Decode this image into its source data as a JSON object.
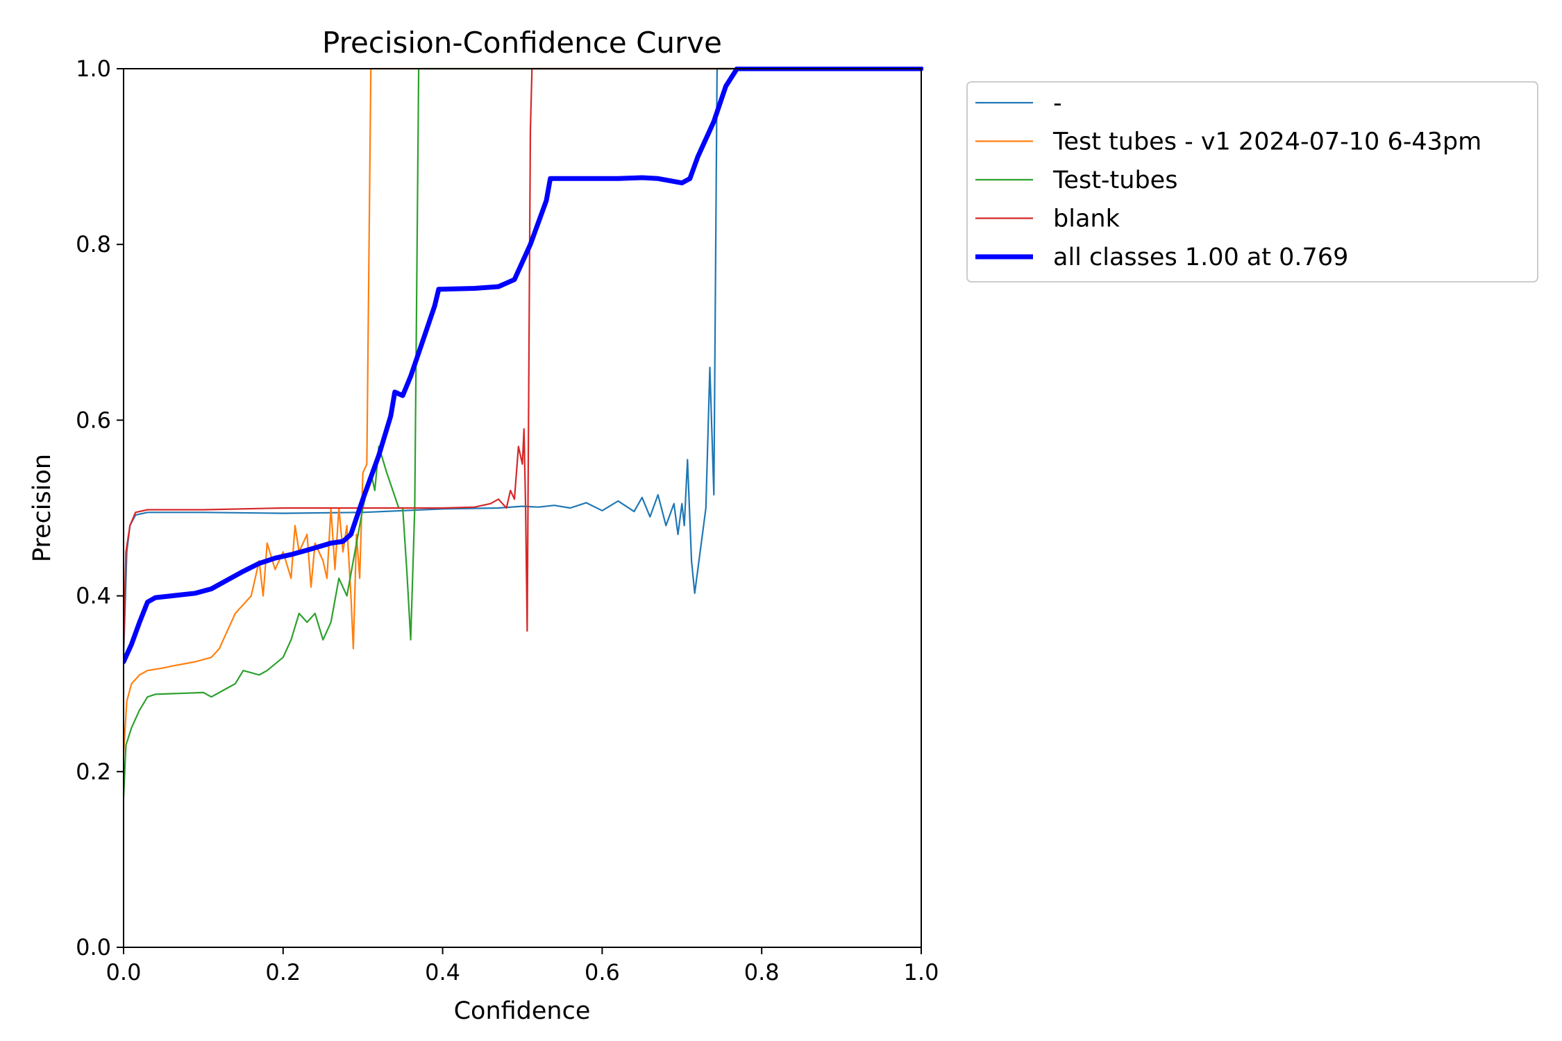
{
  "chart_data": {
    "type": "line",
    "title": "Precision-Confidence Curve",
    "xlabel": "Confidence",
    "ylabel": "Precision",
    "xlim": [
      0,
      1
    ],
    "ylim": [
      0,
      1
    ],
    "x_ticks": [
      "0.0",
      "0.2",
      "0.4",
      "0.6",
      "0.8",
      "1.0"
    ],
    "y_ticks": [
      "0.0",
      "0.2",
      "0.4",
      "0.6",
      "0.8",
      "1.0"
    ],
    "grid": false,
    "legend_position": "outside-top-right",
    "series": [
      {
        "name": "-",
        "color": "#1f77b4",
        "width": "thin",
        "points": [
          [
            0.0,
            0.33
          ],
          [
            0.004,
            0.45
          ],
          [
            0.008,
            0.48
          ],
          [
            0.015,
            0.492
          ],
          [
            0.03,
            0.495
          ],
          [
            0.1,
            0.495
          ],
          [
            0.2,
            0.494
          ],
          [
            0.3,
            0.495
          ],
          [
            0.4,
            0.499
          ],
          [
            0.47,
            0.5
          ],
          [
            0.5,
            0.502
          ],
          [
            0.52,
            0.501
          ],
          [
            0.54,
            0.503
          ],
          [
            0.56,
            0.5
          ],
          [
            0.58,
            0.506
          ],
          [
            0.6,
            0.497
          ],
          [
            0.62,
            0.508
          ],
          [
            0.64,
            0.496
          ],
          [
            0.65,
            0.512
          ],
          [
            0.66,
            0.49
          ],
          [
            0.67,
            0.515
          ],
          [
            0.68,
            0.48
          ],
          [
            0.69,
            0.505
          ],
          [
            0.695,
            0.47
          ],
          [
            0.7,
            0.505
          ],
          [
            0.703,
            0.48
          ],
          [
            0.707,
            0.555
          ],
          [
            0.712,
            0.44
          ],
          [
            0.716,
            0.403
          ],
          [
            0.73,
            0.5
          ],
          [
            0.735,
            0.66
          ],
          [
            0.74,
            0.515
          ],
          [
            0.744,
            1.0
          ],
          [
            1.0,
            1.0
          ]
        ]
      },
      {
        "name": "Test tubes - v1 2024-07-10 6-43pm",
        "color": "#ff7f0e",
        "width": "thin",
        "points": [
          [
            0.0,
            0.22
          ],
          [
            0.004,
            0.28
          ],
          [
            0.01,
            0.3
          ],
          [
            0.02,
            0.31
          ],
          [
            0.03,
            0.315
          ],
          [
            0.05,
            0.318
          ],
          [
            0.06,
            0.32
          ],
          [
            0.09,
            0.325
          ],
          [
            0.11,
            0.33
          ],
          [
            0.12,
            0.34
          ],
          [
            0.13,
            0.36
          ],
          [
            0.14,
            0.38
          ],
          [
            0.15,
            0.39
          ],
          [
            0.16,
            0.4
          ],
          [
            0.165,
            0.42
          ],
          [
            0.17,
            0.44
          ],
          [
            0.175,
            0.4
          ],
          [
            0.18,
            0.46
          ],
          [
            0.19,
            0.43
          ],
          [
            0.2,
            0.45
          ],
          [
            0.21,
            0.42
          ],
          [
            0.215,
            0.48
          ],
          [
            0.22,
            0.45
          ],
          [
            0.23,
            0.47
          ],
          [
            0.235,
            0.41
          ],
          [
            0.24,
            0.46
          ],
          [
            0.25,
            0.44
          ],
          [
            0.255,
            0.42
          ],
          [
            0.26,
            0.5
          ],
          [
            0.265,
            0.43
          ],
          [
            0.27,
            0.5
          ],
          [
            0.275,
            0.45
          ],
          [
            0.28,
            0.48
          ],
          [
            0.285,
            0.4
          ],
          [
            0.288,
            0.34
          ],
          [
            0.292,
            0.47
          ],
          [
            0.296,
            0.42
          ],
          [
            0.3,
            0.54
          ],
          [
            0.305,
            0.55
          ],
          [
            0.31,
            1.0
          ],
          [
            1.0,
            1.0
          ]
        ]
      },
      {
        "name": "Test-tubes",
        "color": "#2ca02c",
        "width": "thin",
        "points": [
          [
            0.0,
            0.17
          ],
          [
            0.003,
            0.23
          ],
          [
            0.01,
            0.25
          ],
          [
            0.02,
            0.27
          ],
          [
            0.03,
            0.285
          ],
          [
            0.04,
            0.288
          ],
          [
            0.1,
            0.29
          ],
          [
            0.11,
            0.285
          ],
          [
            0.12,
            0.29
          ],
          [
            0.13,
            0.295
          ],
          [
            0.14,
            0.3
          ],
          [
            0.15,
            0.315
          ],
          [
            0.17,
            0.31
          ],
          [
            0.18,
            0.315
          ],
          [
            0.2,
            0.33
          ],
          [
            0.21,
            0.35
          ],
          [
            0.22,
            0.38
          ],
          [
            0.23,
            0.37
          ],
          [
            0.24,
            0.38
          ],
          [
            0.25,
            0.35
          ],
          [
            0.26,
            0.37
          ],
          [
            0.27,
            0.42
          ],
          [
            0.28,
            0.4
          ],
          [
            0.29,
            0.45
          ],
          [
            0.3,
            0.5
          ],
          [
            0.31,
            0.54
          ],
          [
            0.315,
            0.52
          ],
          [
            0.32,
            0.57
          ],
          [
            0.33,
            0.54
          ],
          [
            0.345,
            0.5
          ],
          [
            0.35,
            0.5
          ],
          [
            0.355,
            0.43
          ],
          [
            0.36,
            0.35
          ],
          [
            0.365,
            0.5
          ],
          [
            0.37,
            1.0
          ],
          [
            1.0,
            1.0
          ]
        ]
      },
      {
        "name": "blank",
        "color": "#d62728",
        "width": "thin",
        "points": [
          [
            0.0,
            0.34
          ],
          [
            0.003,
            0.45
          ],
          [
            0.008,
            0.48
          ],
          [
            0.015,
            0.495
          ],
          [
            0.03,
            0.498
          ],
          [
            0.1,
            0.498
          ],
          [
            0.2,
            0.5
          ],
          [
            0.3,
            0.5
          ],
          [
            0.35,
            0.5
          ],
          [
            0.4,
            0.5
          ],
          [
            0.44,
            0.501
          ],
          [
            0.46,
            0.505
          ],
          [
            0.47,
            0.51
          ],
          [
            0.48,
            0.5
          ],
          [
            0.485,
            0.52
          ],
          [
            0.49,
            0.51
          ],
          [
            0.495,
            0.57
          ],
          [
            0.5,
            0.55
          ],
          [
            0.502,
            0.59
          ],
          [
            0.504,
            0.5
          ],
          [
            0.506,
            0.36
          ],
          [
            0.51,
            0.93
          ],
          [
            0.512,
            1.0
          ],
          [
            1.0,
            1.0
          ]
        ]
      },
      {
        "name": "all classes 1.00 at 0.769",
        "color": "#0000ff",
        "width": "thick",
        "points": [
          [
            0.0,
            0.325
          ],
          [
            0.01,
            0.345
          ],
          [
            0.02,
            0.37
          ],
          [
            0.03,
            0.393
          ],
          [
            0.04,
            0.398
          ],
          [
            0.06,
            0.4
          ],
          [
            0.09,
            0.403
          ],
          [
            0.11,
            0.408
          ],
          [
            0.13,
            0.418
          ],
          [
            0.15,
            0.428
          ],
          [
            0.17,
            0.437
          ],
          [
            0.19,
            0.443
          ],
          [
            0.21,
            0.447
          ],
          [
            0.23,
            0.452
          ],
          [
            0.26,
            0.46
          ],
          [
            0.275,
            0.462
          ],
          [
            0.285,
            0.47
          ],
          [
            0.3,
            0.51
          ],
          [
            0.32,
            0.56
          ],
          [
            0.335,
            0.605
          ],
          [
            0.34,
            0.632
          ],
          [
            0.35,
            0.628
          ],
          [
            0.36,
            0.65
          ],
          [
            0.375,
            0.69
          ],
          [
            0.39,
            0.73
          ],
          [
            0.395,
            0.749
          ],
          [
            0.44,
            0.75
          ],
          [
            0.47,
            0.752
          ],
          [
            0.48,
            0.756
          ],
          [
            0.49,
            0.76
          ],
          [
            0.51,
            0.8
          ],
          [
            0.53,
            0.85
          ],
          [
            0.535,
            0.875
          ],
          [
            0.6,
            0.875
          ],
          [
            0.62,
            0.875
          ],
          [
            0.65,
            0.876
          ],
          [
            0.67,
            0.875
          ],
          [
            0.7,
            0.87
          ],
          [
            0.71,
            0.875
          ],
          [
            0.72,
            0.9
          ],
          [
            0.74,
            0.94
          ],
          [
            0.755,
            0.98
          ],
          [
            0.769,
            1.0
          ],
          [
            1.0,
            1.0
          ]
        ]
      }
    ]
  }
}
